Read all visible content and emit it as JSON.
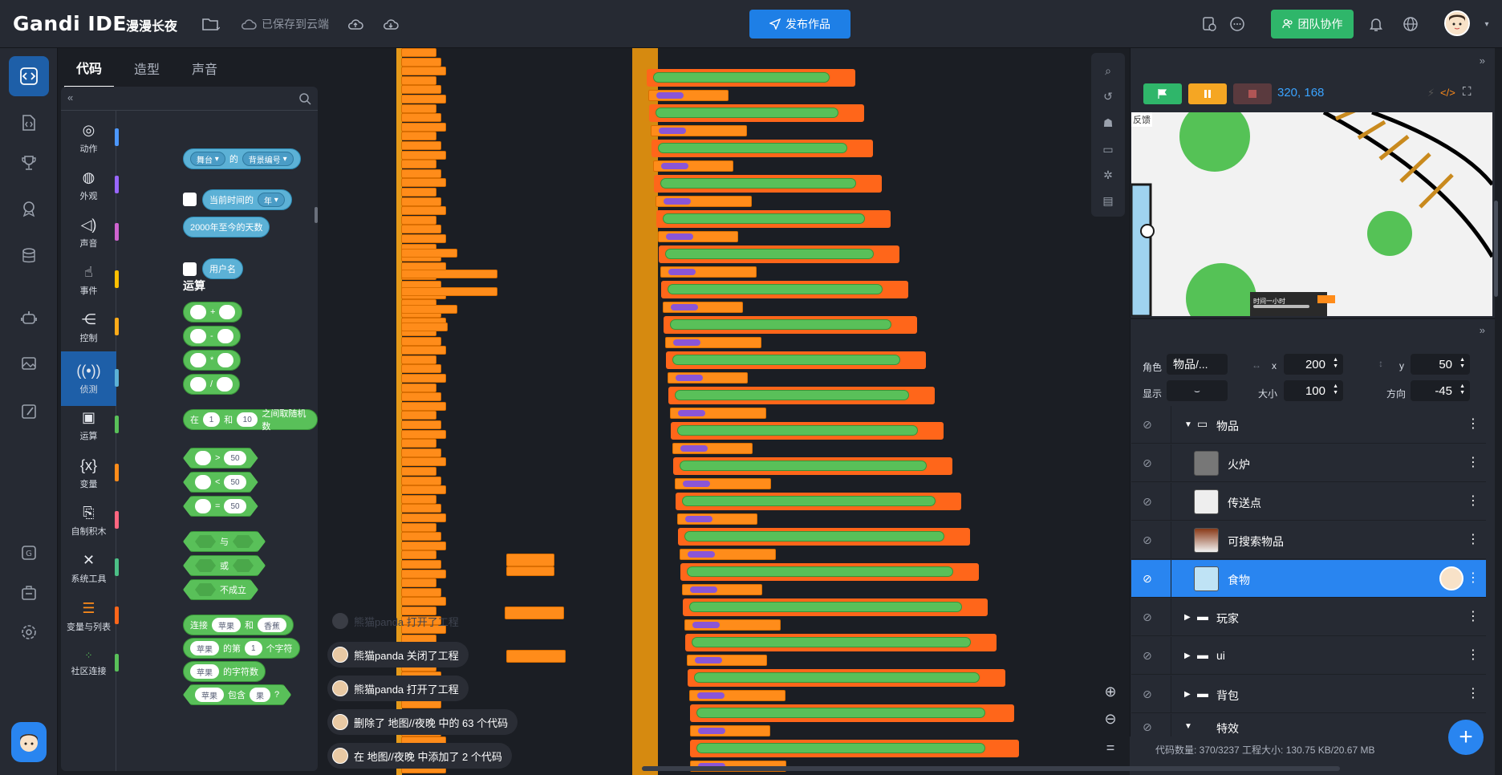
{
  "topbar": {
    "logo": "Gandi IDE",
    "project_name": "漫漫长夜",
    "saved_status": "已保存到云端",
    "publish_label": "发布作品",
    "team_label": "团队协作"
  },
  "tabs": [
    "代码",
    "造型",
    "声音"
  ],
  "categories": [
    {
      "label": "动作",
      "color": "#4c97ff"
    },
    {
      "label": "外观",
      "color": "#9966ff"
    },
    {
      "label": "声音",
      "color": "#cf63cf"
    },
    {
      "label": "事件",
      "color": "#ffbf00"
    },
    {
      "label": "控制",
      "color": "#ffab19"
    },
    {
      "label": "侦测",
      "color": "#5cb1d6"
    },
    {
      "label": "运算",
      "color": "#59c059"
    },
    {
      "label": "变量",
      "color": "#ff8c1a"
    },
    {
      "label": "自制积木",
      "color": "#ff6680"
    },
    {
      "label": "系统工具",
      "color": "#4cbf86"
    },
    {
      "label": "变量与列表",
      "color": "#ff661a"
    },
    {
      "label": "社区连接",
      "color": "#59c059"
    }
  ],
  "flyout": {
    "stage": "舞台",
    "of": "的",
    "backdrop_number": "背景编号",
    "current_time": "当前时间的",
    "year": "年",
    "days_since_2000": "2000年至今的天数",
    "username": "用户名",
    "section_operators": "运算",
    "plus": "+",
    "minus": "-",
    "times": "*",
    "divide": "/",
    "random_in": "在",
    "random_from": "1",
    "random_and": "和",
    "random_to": "10",
    "random_pick": "之间取随机数",
    "gt": ">",
    "lt": "<",
    "eq": "=",
    "fifty": "50",
    "and_label": "与",
    "or_label": "或",
    "not_label": "不成立",
    "join": "连接",
    "apple": "苹果",
    "banana": "香蕉",
    "join_and": "和",
    "letter_of": "的第",
    "letter_n": "1",
    "letter_suffix": "个字符",
    "length_of": "的字符数",
    "contains": "包含",
    "contains_item": "果",
    "question": "?"
  },
  "toasts": [
    "熊猫panda 打开了工程",
    "熊猫panda 关闭了工程",
    "熊猫panda 打开了工程",
    "删除了 地图//夜晚 中的 63 个代码",
    "在 地图//夜晚 中添加了 2 个代码"
  ],
  "stage": {
    "coords": "320, 168",
    "feedback_label": "反馈",
    "timer_label": "时间一小时"
  },
  "sprite_props": {
    "role_label": "角色",
    "role_value": "物品/...",
    "x_label": "x",
    "x_value": "200",
    "y_label": "y",
    "y_value": "50",
    "show_label": "显示",
    "size_label": "大小",
    "size_value": "100",
    "dir_label": "方向",
    "dir_value": "-45"
  },
  "sprites": [
    {
      "name": "物品",
      "type": "folder",
      "open": true
    },
    {
      "name": "火炉",
      "type": "sprite"
    },
    {
      "name": "传送点",
      "type": "sprite"
    },
    {
      "name": "可搜索物品",
      "type": "sprite"
    },
    {
      "name": "食物",
      "type": "sprite",
      "selected": true
    },
    {
      "name": "玩家",
      "type": "folder",
      "open": false
    },
    {
      "name": "ui",
      "type": "folder",
      "open": false
    },
    {
      "name": "背包",
      "type": "folder",
      "open": false
    },
    {
      "name": "特效",
      "type": "folder",
      "open": true
    }
  ],
  "status": {
    "text": "代码数量: 370/3237   工程大小: 130.75 KB/20.67 MB"
  },
  "colors": {
    "accent": "#2985f0",
    "publish": "#1e7fe6",
    "team": "#2fb66a",
    "flag": "#2fb66a",
    "pause": "#f5a623",
    "stop": "#8a3a3a"
  }
}
